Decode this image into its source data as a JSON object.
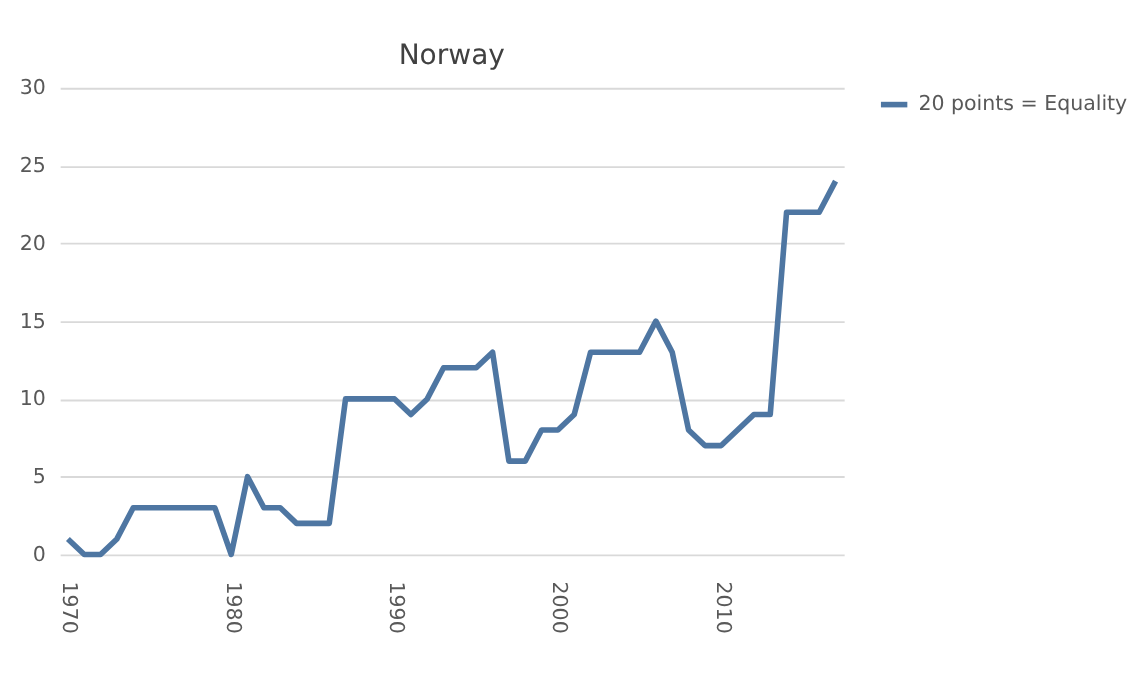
{
  "chart_data": {
    "type": "line",
    "title": "Norway",
    "categories": [
      "1970",
      null,
      null,
      null,
      null,
      null,
      null,
      null,
      null,
      null,
      "1980",
      null,
      null,
      null,
      null,
      null,
      null,
      null,
      null,
      null,
      "1990",
      null,
      null,
      null,
      null,
      null,
      null,
      null,
      null,
      null,
      "2000",
      null,
      null,
      null,
      null,
      null,
      null,
      null,
      null,
      null,
      "2010",
      null,
      null,
      null,
      null,
      null,
      null,
      null
    ],
    "series": [
      {
        "name": "20 points = Equality",
        "color": "#4e76a2",
        "values": [
          1,
          0,
          0,
          1,
          3,
          3,
          3,
          3,
          3,
          3,
          0,
          5,
          3,
          3,
          2,
          2,
          2,
          10,
          10,
          10,
          10,
          9,
          10,
          12,
          12,
          12,
          13,
          6,
          6,
          8,
          8,
          9,
          13,
          13,
          13,
          13,
          15,
          13,
          8,
          7,
          7,
          8,
          9,
          9,
          22,
          22,
          22,
          24
        ]
      }
    ],
    "ylim": [
      0,
      30
    ],
    "yticks": [
      0,
      5,
      10,
      15,
      20,
      25,
      30
    ],
    "grid": "y",
    "legend": "right",
    "marker": "none",
    "line_style": "solid"
  }
}
